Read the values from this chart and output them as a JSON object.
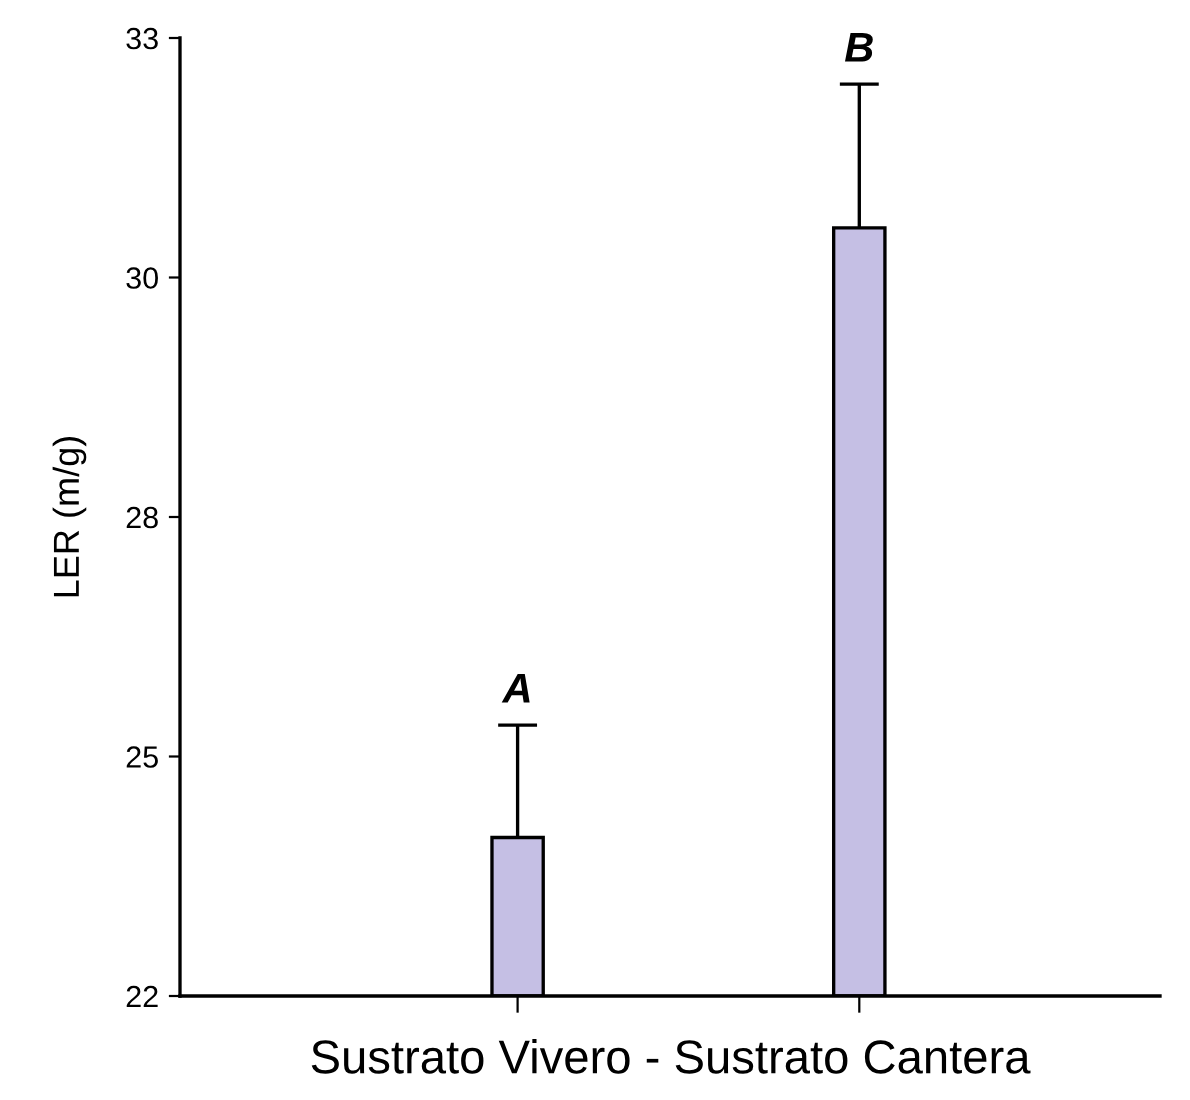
{
  "chart_data": {
    "type": "bar",
    "ylabel": "LER (m/g)",
    "xlabel": "Sustrato Vivero - Sustrato Cantera",
    "categories": [
      null,
      null
    ],
    "values": [
      23.82,
      30.82
    ],
    "errors": [
      1.29,
      1.65
    ],
    "color": "#c5bfe4",
    "ylim": [
      22,
      33
    ],
    "yticks": [
      22,
      {
        "value": 24.75,
        "label": "25"
      },
      {
        "value": 27.5,
        "label": "28"
      },
      {
        "value": 30.25,
        "label": "30"
      },
      33
    ],
    "annotations": [
      "A",
      "B"
    ],
    "grid": false
  }
}
